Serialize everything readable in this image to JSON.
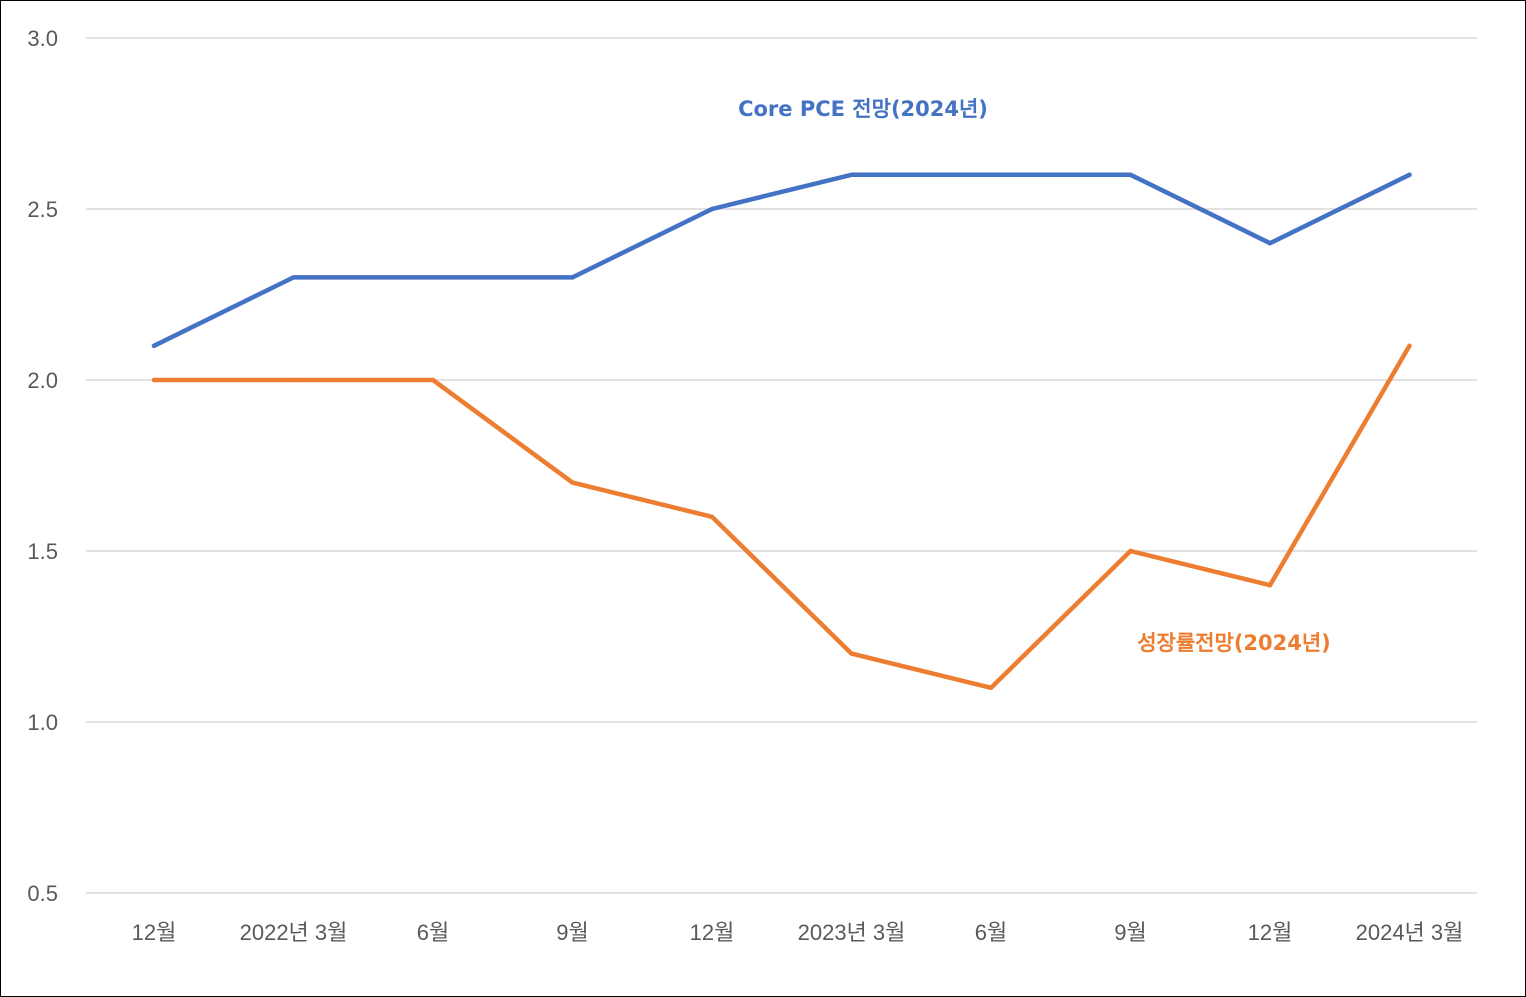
{
  "chart_data": {
    "type": "line",
    "categories": [
      "12월",
      "2022년 3월",
      "6월",
      "9월",
      "12월",
      "2023년 3월",
      "6월",
      "9월",
      "12월",
      "2024년 3월"
    ],
    "series": [
      {
        "name": "Core PCE 전망(2024년)",
        "color": "#4472C4",
        "values": [
          2.1,
          2.3,
          2.3,
          2.3,
          2.5,
          2.6,
          2.6,
          2.6,
          2.4,
          2.6
        ]
      },
      {
        "name": "성장률전망(2024년)",
        "color": "#ED7D31",
        "values": [
          2.0,
          2.0,
          2.0,
          1.7,
          1.6,
          1.2,
          1.1,
          1.5,
          1.4,
          2.1
        ]
      }
    ],
    "yticks": [
      "0.5",
      "1.0",
      "1.5",
      "2.0",
      "2.5",
      "3.0"
    ],
    "ylim": [
      0.5,
      3.0
    ],
    "grid": true,
    "gridColor": "#D9D9D9",
    "legend": "inline series labels",
    "title": "",
    "xlabel": "",
    "ylabel": ""
  }
}
